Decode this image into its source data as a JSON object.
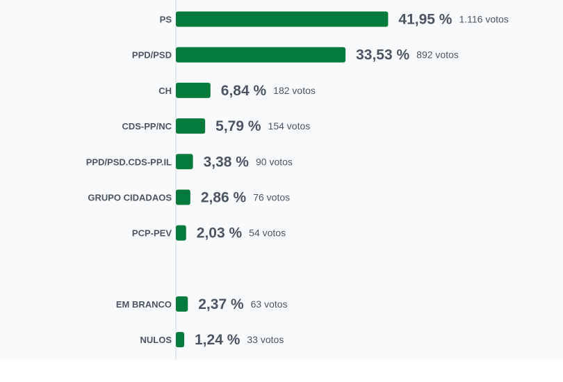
{
  "chart_data": {
    "type": "bar",
    "orientation": "horizontal",
    "categories": [
      "PS",
      "PPD/PSD",
      "CH",
      "CDS-PP/NC",
      "PPD/PSD.CDS-PP.IL",
      "GRUPO CIDADAOS",
      "PCP-PEV",
      "EM BRANCO",
      "NULOS"
    ],
    "values": [
      41.95,
      33.53,
      6.84,
      5.79,
      3.38,
      2.86,
      2.03,
      2.37,
      1.24
    ],
    "percent_labels": [
      "41,95 %",
      "33,53 %",
      "6,84 %",
      "5,79 %",
      "3,38 %",
      "2,86 %",
      "2,03 %",
      "2,37 %",
      "1,24 %"
    ],
    "vote_labels": [
      "1.116 votos",
      "892 votos",
      "182 votos",
      "154 votos",
      "90 votos",
      "76 votos",
      "54 votos",
      "63 votos",
      "33 votos"
    ],
    "group_gap_after_index": 6,
    "bar_color": "#047a3c",
    "text_color": "#4b5563",
    "axis_color": "#d1d5db",
    "background": "#f8fafc",
    "grid": false,
    "legend": "none",
    "title": "",
    "xlabel": "",
    "ylabel": ""
  }
}
